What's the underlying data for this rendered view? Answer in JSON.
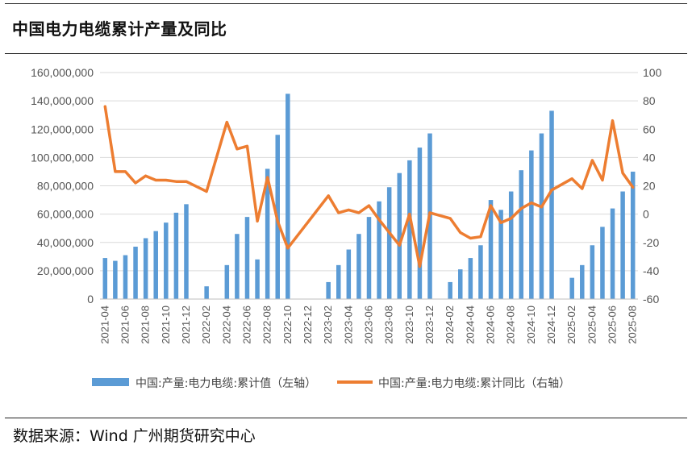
{
  "header": {
    "title": "中国电力电缆累计产量及同比"
  },
  "footer": {
    "source": "数据来源：Wind  广州期货研究中心"
  },
  "chart_data": {
    "type": "bar+line",
    "categories": [
      "2021-04",
      "2021-05",
      "2021-06",
      "2021-07",
      "2021-08",
      "2021-09",
      "2021-10",
      "2021-11",
      "2021-12",
      "2022-01",
      "2022-02",
      "2022-03",
      "2022-04",
      "2022-05",
      "2022-06",
      "2022-07",
      "2022-08",
      "2022-09",
      "2022-10",
      "2022-11",
      "2022-12",
      "2023-01",
      "2023-02",
      "2023-03",
      "2023-04",
      "2023-05",
      "2023-06",
      "2023-07",
      "2023-08",
      "2023-09",
      "2023-10",
      "2023-11",
      "2023-12",
      "2024-01",
      "2024-02",
      "2024-03",
      "2024-04",
      "2024-05",
      "2024-06",
      "2024-07",
      "2024-08",
      "2024-09",
      "2024-10",
      "2024-11",
      "2024-12",
      "2025-01",
      "2025-02",
      "2025-03",
      "2025-04",
      "2025-05",
      "2025-06",
      "2025-07",
      "2025-08"
    ],
    "x_tick_labels": [
      "2021-04",
      "2021-06",
      "2021-08",
      "2021-10",
      "2021-12",
      "2022-02",
      "2022-04",
      "2022-06",
      "2022-08",
      "2022-10",
      "2022-12",
      "2023-02",
      "2023-04",
      "2023-06",
      "2023-08",
      "2023-10",
      "2023-12",
      "2024-02",
      "2024-04",
      "2024-06",
      "2024-08",
      "2024-10",
      "2024-12",
      "2025-02",
      "2025-04",
      "2025-06",
      "2025-08"
    ],
    "series": [
      {
        "name": "中国:产量:电力电缆:累计值（左轴）",
        "type": "bar",
        "axis": "left",
        "color": "#5b9bd5",
        "values": [
          29000000,
          27000000,
          31000000,
          37000000,
          43000000,
          48000000,
          54000000,
          61000000,
          67000000,
          null,
          9000000,
          null,
          24000000,
          46000000,
          58000000,
          28000000,
          92000000,
          116000000,
          145000000,
          null,
          null,
          null,
          12000000,
          24000000,
          35000000,
          46000000,
          58000000,
          69000000,
          79000000,
          89000000,
          98000000,
          107000000,
          117000000,
          null,
          12000000,
          21000000,
          29000000,
          38000000,
          70000000,
          63000000,
          76000000,
          91000000,
          105000000,
          117000000,
          133000000,
          null,
          15000000,
          24000000,
          38000000,
          51000000,
          64000000,
          76000000,
          90000000
        ]
      },
      {
        "name": "中国:产量:电力电缆:累计同比（右轴）",
        "type": "line",
        "axis": "right",
        "color": "#ed7d31",
        "values": [
          76,
          30,
          30,
          22,
          27,
          24,
          24,
          23,
          23,
          null,
          16,
          null,
          65,
          46,
          48,
          -5,
          26,
          -5,
          -24,
          null,
          null,
          null,
          13,
          1,
          3,
          1,
          6,
          -4,
          -13,
          -22,
          0,
          -37,
          1,
          null,
          -3,
          -13,
          -17,
          -16,
          6,
          -6,
          -3,
          4,
          8,
          5,
          17,
          null,
          25,
          18,
          38,
          24,
          66,
          29,
          19
        ]
      }
    ],
    "y_left": {
      "min": 0,
      "max": 160000000,
      "ticks": [
        "0",
        "20,000,000",
        "40,000,000",
        "60,000,000",
        "80,000,000",
        "100,000,000",
        "120,000,000",
        "140,000,000",
        "160,000,000"
      ]
    },
    "y_right": {
      "min": -60,
      "max": 100,
      "ticks": [
        "-60",
        "-40",
        "-20",
        "0",
        "20",
        "40",
        "60",
        "80",
        "100"
      ]
    },
    "legend": [
      "中国:产量:电力电缆:累计值（左轴）",
      "中国:产量:电力电缆:累计同比（右轴）"
    ],
    "legend_position": "bottom"
  }
}
